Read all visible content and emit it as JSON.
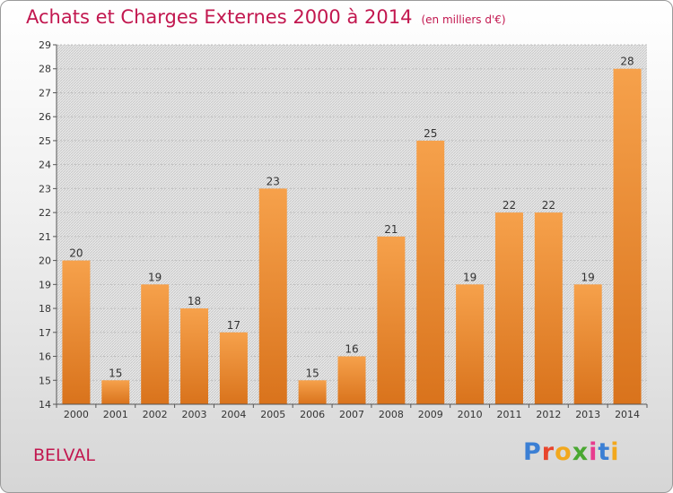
{
  "header": {
    "title": "Achats et Charges Externes 2000 à 2014",
    "unit": "(en milliers d'€)"
  },
  "footer": {
    "commune": "BELVAL",
    "logo": "Proxiti",
    "logo_colors": [
      "#3b7fd4",
      "#e8452c",
      "#f2a81d",
      "#4aa832",
      "#e83c8d",
      "#3b7fd4",
      "#f2a81d"
    ]
  },
  "colors": {
    "title": "#c2174f",
    "bar_top": "#f6a14b",
    "bar_bottom": "#d9731c"
  },
  "chart_data": {
    "type": "bar",
    "title": "Achats et Charges Externes 2000 à 2014",
    "subtitle": "(en milliers d'€)",
    "categories": [
      "2000",
      "2001",
      "2002",
      "2003",
      "2004",
      "2005",
      "2006",
      "2007",
      "2008",
      "2009",
      "2010",
      "2011",
      "2012",
      "2013",
      "2014"
    ],
    "values": [
      20,
      15,
      19,
      18,
      17,
      23,
      15,
      16,
      21,
      25,
      19,
      22,
      22,
      19,
      28
    ],
    "ylim": [
      14,
      29
    ],
    "yticks": [
      14,
      15,
      16,
      17,
      18,
      19,
      20,
      21,
      22,
      23,
      24,
      25,
      26,
      27,
      28,
      29
    ],
    "grid": true,
    "xlabel": "",
    "ylabel": ""
  }
}
